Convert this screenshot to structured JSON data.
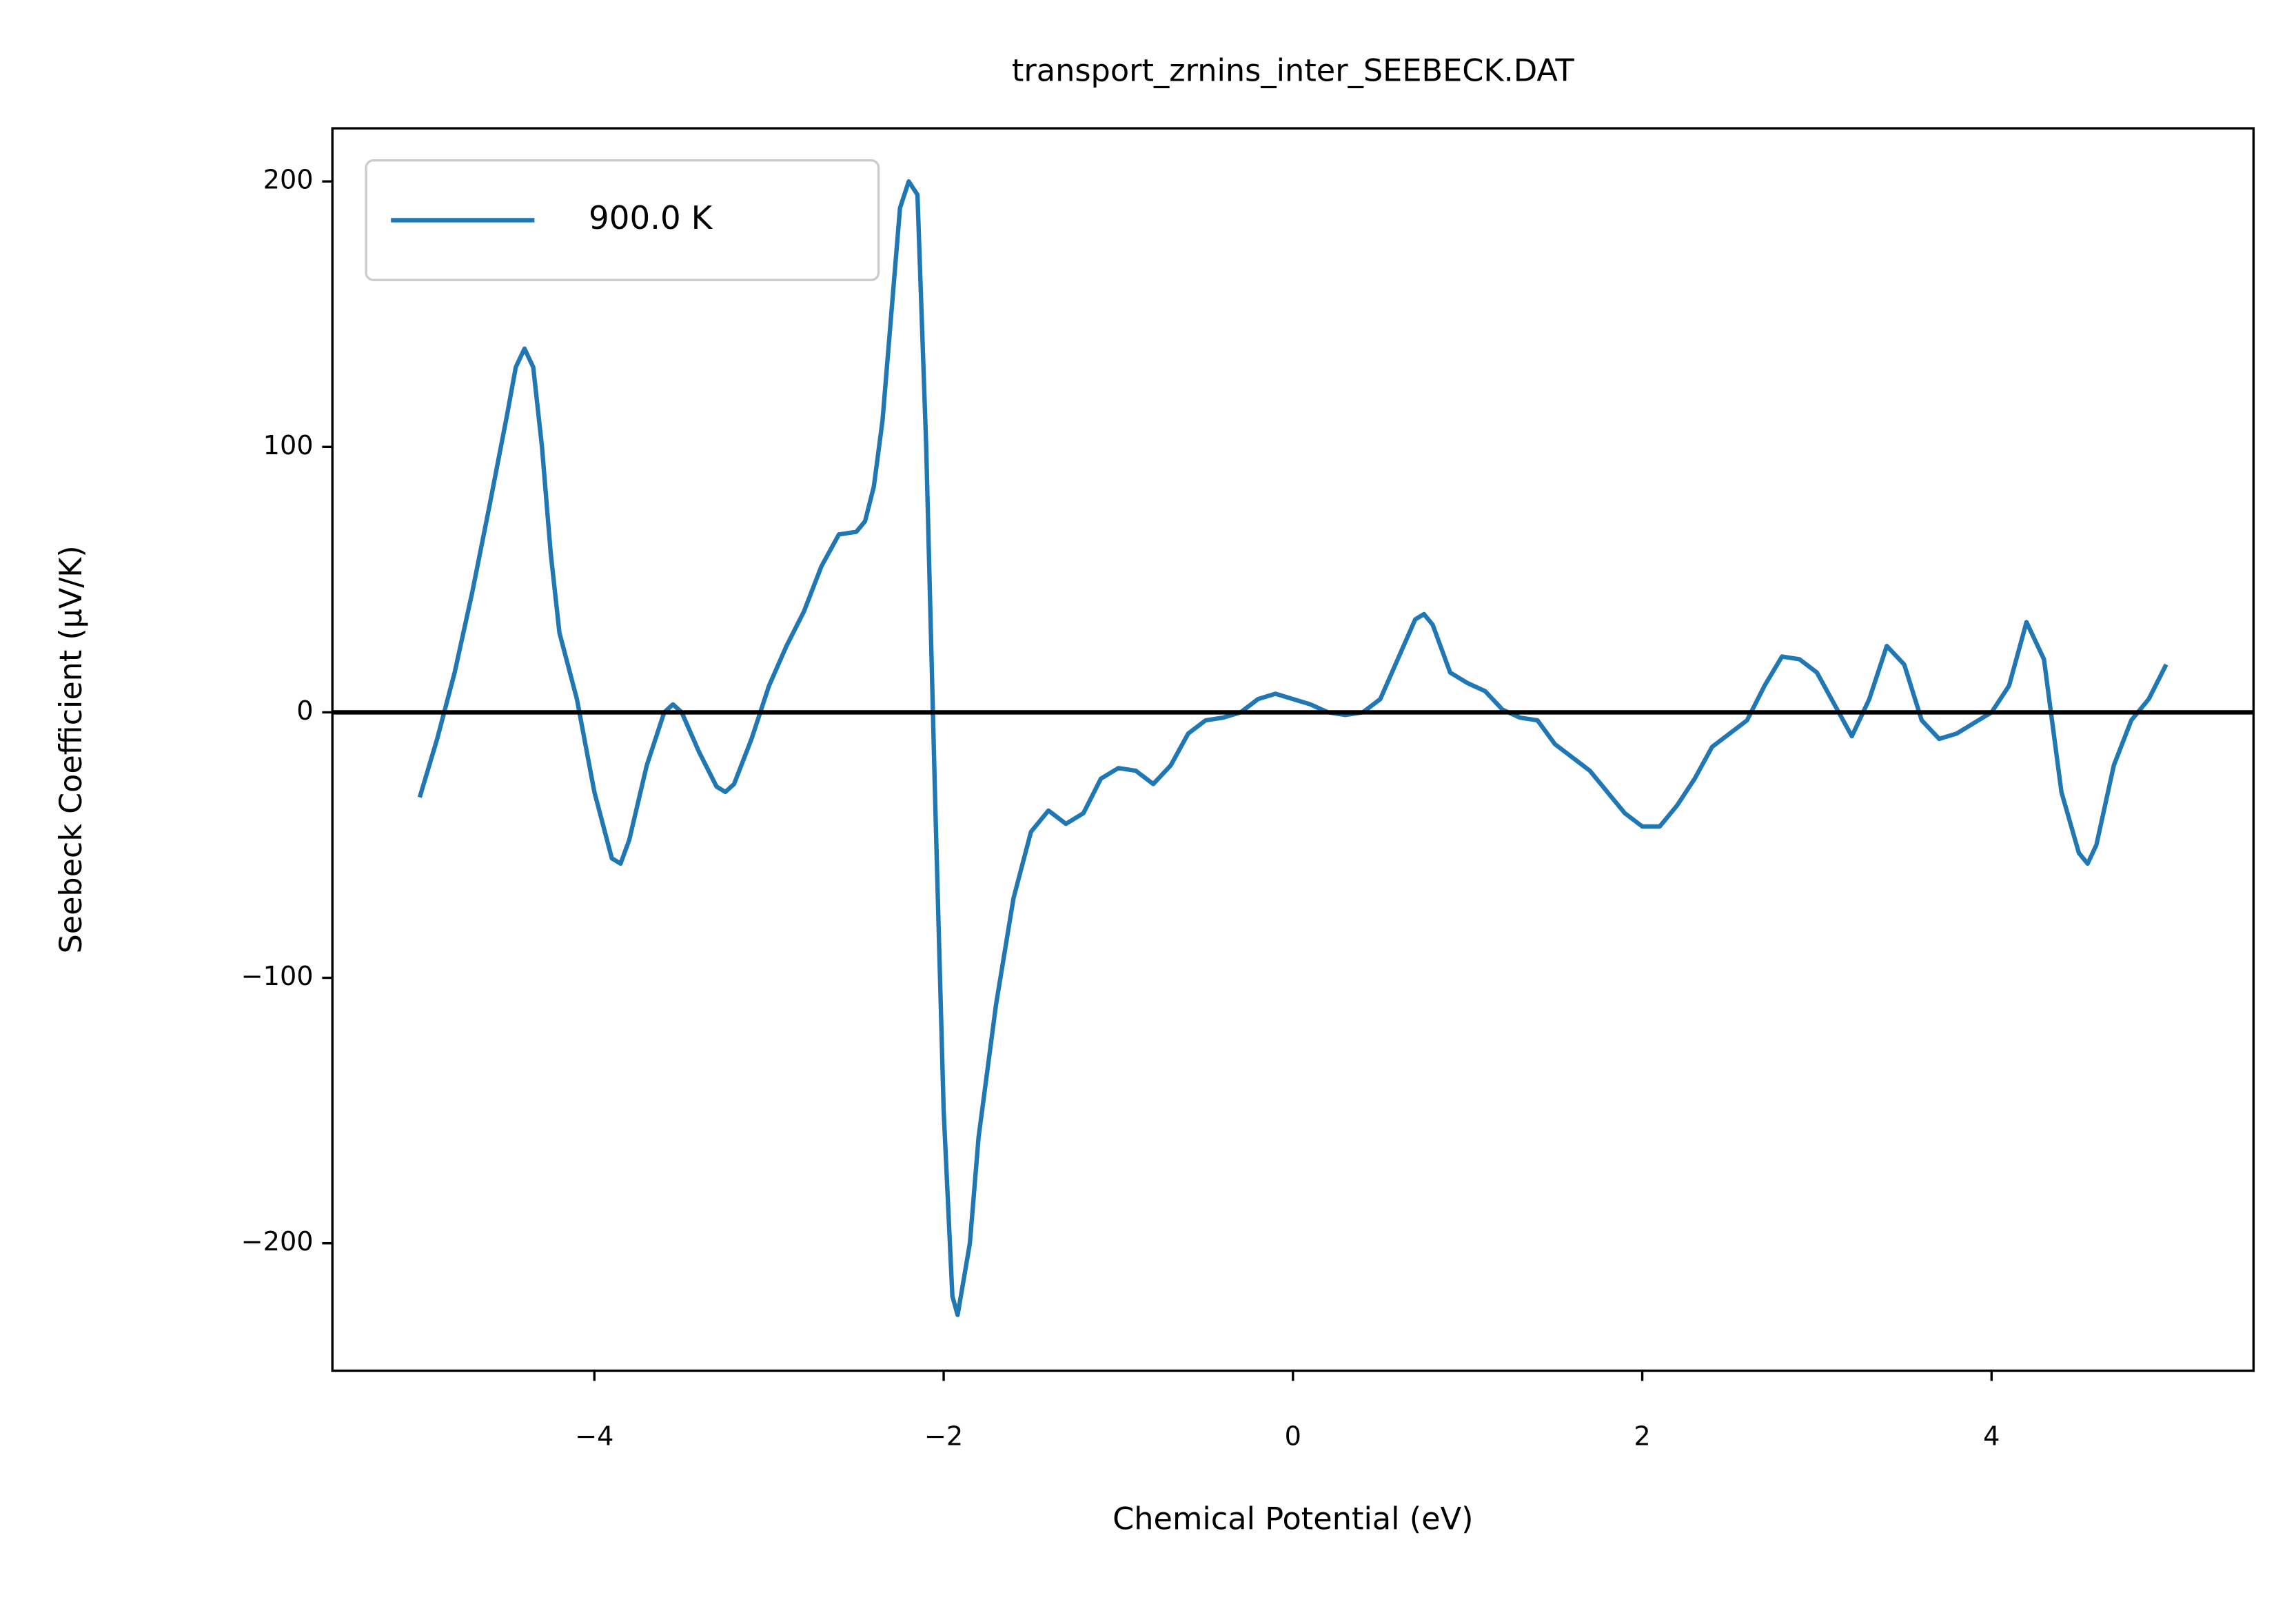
{
  "chart_data": {
    "type": "line",
    "title": "transport_zrnins_inter_SEEBECK.DAT",
    "x_label": "Chemical Potential (eV)",
    "y_label": "Seebeck Coefficient (μV/K)",
    "x": [
      -5.0,
      -4.9,
      -4.8,
      -4.7,
      -4.6,
      -4.5,
      -4.45,
      -4.4,
      -4.35,
      -4.3,
      -4.25,
      -4.2,
      -4.1,
      -4.0,
      -3.9,
      -3.85,
      -3.8,
      -3.7,
      -3.6,
      -3.55,
      -3.5,
      -3.4,
      -3.3,
      -3.25,
      -3.2,
      -3.1,
      -3.0,
      -2.9,
      -2.8,
      -2.7,
      -2.6,
      -2.5,
      -2.45,
      -2.4,
      -2.35,
      -2.3,
      -2.25,
      -2.2,
      -2.15,
      -2.1,
      -2.05,
      -2.0,
      -1.95,
      -1.92,
      -1.85,
      -1.8,
      -1.7,
      -1.6,
      -1.5,
      -1.4,
      -1.3,
      -1.2,
      -1.1,
      -1.0,
      -0.9,
      -0.8,
      -0.7,
      -0.6,
      -0.5,
      -0.4,
      -0.3,
      -0.2,
      -0.1,
      0.0,
      0.1,
      0.2,
      0.3,
      0.4,
      0.5,
      0.6,
      0.7,
      0.75,
      0.8,
      0.9,
      1.0,
      1.1,
      1.2,
      1.3,
      1.4,
      1.5,
      1.6,
      1.7,
      1.8,
      1.9,
      2.0,
      2.1,
      2.2,
      2.3,
      2.4,
      2.5,
      2.6,
      2.7,
      2.8,
      2.9,
      3.0,
      3.1,
      3.2,
      3.3,
      3.4,
      3.5,
      3.6,
      3.7,
      3.8,
      3.9,
      4.0,
      4.1,
      4.2,
      4.3,
      4.4,
      4.5,
      4.55,
      4.6,
      4.7,
      4.8,
      4.9,
      5.0
    ],
    "series": [
      {
        "name": "900.0 K",
        "color": "#1f77b4",
        "values": [
          -32,
          -10,
          15,
          45,
          78,
          112,
          130,
          137,
          130,
          100,
          60,
          30,
          5,
          -30,
          -55,
          -57,
          -48,
          -20,
          0,
          3,
          0,
          -15,
          -28,
          -30,
          -27,
          -10,
          10,
          25,
          38,
          55,
          67,
          68,
          72,
          85,
          110,
          150,
          190,
          200,
          195,
          100,
          -30,
          -150,
          -220,
          -227,
          -200,
          -160,
          -110,
          -70,
          -45,
          -37,
          -42,
          -38,
          -25,
          -21,
          -22,
          -27,
          -20,
          -8,
          -3,
          -2,
          0,
          5,
          7,
          5,
          3,
          0,
          -1,
          0,
          5,
          20,
          35,
          37,
          33,
          15,
          11,
          8,
          1,
          -2,
          -3,
          -12,
          -17,
          -22,
          -30,
          -38,
          -43,
          -43,
          -35,
          -25,
          -13,
          -8,
          -3,
          10,
          21,
          20,
          15,
          3,
          -9,
          5,
          25,
          18,
          -3,
          -10,
          -8,
          -4,
          0,
          10,
          34,
          20,
          -30,
          -53,
          -57,
          -50,
          -20,
          -3,
          5,
          18
        ]
      }
    ],
    "hline": 0,
    "xlim": [
      -5.5,
      5.5
    ],
    "ylim": [
      -248,
      220
    ],
    "xticks": [
      {
        "value": -4,
        "label": "−4"
      },
      {
        "value": -2,
        "label": "−2"
      },
      0,
      2,
      4
    ],
    "yticks": [
      {
        "value": -200,
        "label": "−200"
      },
      {
        "value": -100,
        "label": "−100"
      },
      0,
      100,
      200
    ],
    "legend": "upper left"
  }
}
